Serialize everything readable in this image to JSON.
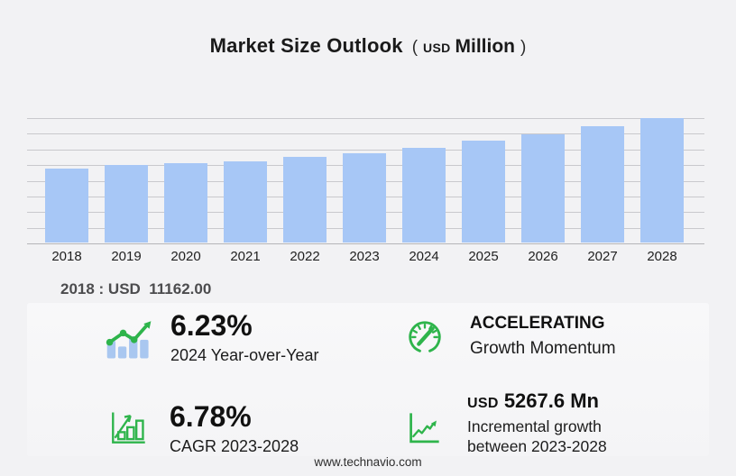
{
  "title": {
    "main": "Market Size Outlook",
    "paren_open": "(",
    "currency": "USD",
    "unit": "Million",
    "paren_close": ")"
  },
  "annotation": {
    "label": "2018 : USD  11162.00"
  },
  "chart_data": {
    "type": "bar",
    "title": "Market Size Outlook (USD Million)",
    "xlabel": "",
    "ylabel": "",
    "categories": [
      "2018",
      "2019",
      "2020",
      "2021",
      "2022",
      "2023",
      "2024",
      "2025",
      "2026",
      "2027",
      "2028"
    ],
    "values": [
      11162.0,
      11804.0,
      12022.0,
      12295.0,
      12978.0,
      13569.4,
      14414.7,
      15404.0,
      16461.0,
      17620.0,
      18837.0
    ],
    "ylim": [
      0,
      19000
    ],
    "gridline_count": 9,
    "grid": true,
    "legend": false,
    "bar_color": "#a7c7f6",
    "grid_color": "#c9c9cd"
  },
  "stats": [
    {
      "icon": "trend-bars-icon",
      "value": "6.23%",
      "label": "2024 Year-over-Year"
    },
    {
      "icon": "speedometer-icon",
      "value": "ACCELERATING",
      "label": "Growth Momentum"
    },
    {
      "icon": "growth-chart-icon",
      "value": "6.78%",
      "label": "CAGR 2023-2028"
    },
    {
      "icon": "incremental-growth-icon",
      "value_prefix": "USD",
      "value": "5267.6 Mn",
      "label_line1": "Incremental growth",
      "label_line2": "between 2023-2028"
    }
  ],
  "footer": {
    "website": "www.technavio.com"
  },
  "colors": {
    "background": "#f2f2f4",
    "bar_blue": "#a7c7f6",
    "accent_green": "#2eb44b",
    "grid": "#c9c9cd",
    "text_dark": "#1a1a1a",
    "text_gray": "#4c4c4e"
  }
}
